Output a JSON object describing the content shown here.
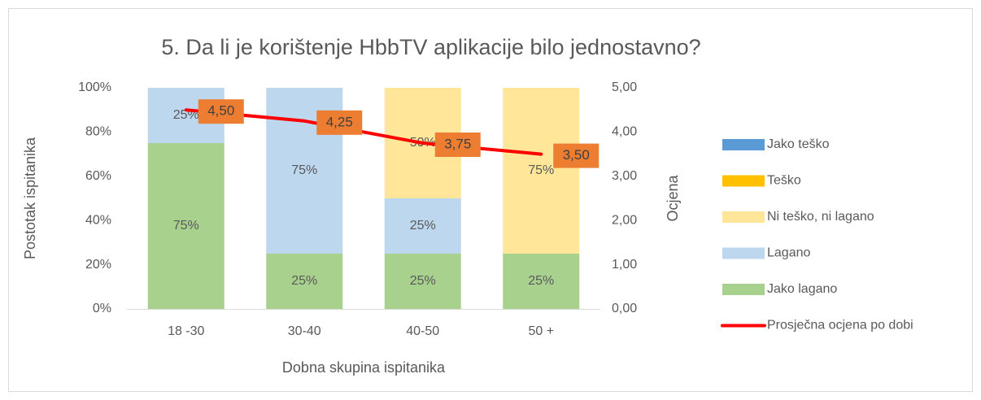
{
  "chart_data": {
    "type": "bar",
    "stacked": true,
    "title": "5. Da li je korištenje HbbTV aplikacije bilo jednostavno?",
    "xlabel": "Dobna skupina ispitanika",
    "ylabel": "Postotak ispitanika",
    "y2label": "Ocjena",
    "categories": [
      "18 -30",
      "30-40",
      "40-50",
      "50 +"
    ],
    "series": [
      {
        "name": "Jako lagano",
        "color": "#a9d18e",
        "values": [
          75,
          25,
          25,
          25
        ],
        "value_labels": [
          "75%",
          "25%",
          "25%",
          "25%"
        ]
      },
      {
        "name": "Lagano",
        "color": "#bdd7ee",
        "values": [
          25,
          75,
          25,
          0
        ],
        "value_labels": [
          "25%",
          "75%",
          "25%",
          null
        ]
      },
      {
        "name": "Ni teško, ni lagano",
        "color": "#ffe699",
        "values": [
          0,
          0,
          50,
          75
        ],
        "value_labels": [
          null,
          null,
          "50%",
          "75%"
        ]
      },
      {
        "name": "Teško",
        "color": "#ffc000",
        "values": [
          0,
          0,
          0,
          0
        ]
      },
      {
        "name": "Jako teško",
        "color": "#5b9bd5",
        "values": [
          0,
          0,
          0,
          0
        ]
      },
      {
        "name": "Prosječna ocjena po dobi",
        "type": "line",
        "axis": "y2",
        "color": "#ff0000",
        "values": [
          4.5,
          4.25,
          3.75,
          3.5
        ],
        "value_labels": [
          "4,50",
          "4,25",
          "3,75",
          "3,50"
        ],
        "label_color": "#ed7d31"
      }
    ],
    "ylim": [
      0,
      100
    ],
    "yticks": [
      {
        "value": 0,
        "label": "0%"
      },
      {
        "value": 20,
        "label": "20%"
      },
      {
        "value": 40,
        "label": "40%"
      },
      {
        "value": 60,
        "label": "60%"
      },
      {
        "value": 80,
        "label": "80%"
      },
      {
        "value": 100,
        "label": "100%"
      }
    ],
    "y2lim": [
      0,
      5
    ],
    "y2ticks": [
      {
        "value": 0,
        "label": "0,00"
      },
      {
        "value": 1,
        "label": "1,00"
      },
      {
        "value": 2,
        "label": "2,00"
      },
      {
        "value": 3,
        "label": "3,00"
      },
      {
        "value": 4,
        "label": "4,00"
      },
      {
        "value": 5,
        "label": "5,00"
      }
    ],
    "grid": false,
    "legend": "right"
  }
}
